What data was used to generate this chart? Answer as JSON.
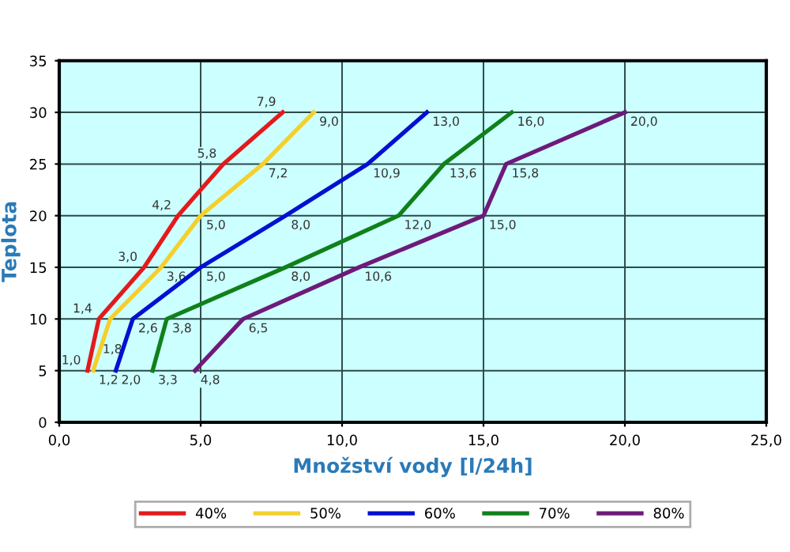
{
  "chart_data": {
    "type": "line",
    "xlabel": "Množství vody [l/24h]",
    "ylabel": "Teplota",
    "xlim": [
      0,
      25
    ],
    "xticks": [
      {
        "value": 0,
        "label": "0,0"
      },
      {
        "value": 5,
        "label": "5,0"
      },
      {
        "value": 10,
        "label": "10,0"
      },
      {
        "value": 15,
        "label": "15,0"
      },
      {
        "value": 20,
        "label": "20,0"
      },
      {
        "value": 25,
        "label": "25,0"
      }
    ],
    "ylim": [
      0,
      35
    ],
    "yticks": [
      0,
      5,
      10,
      15,
      20,
      25,
      30,
      35
    ],
    "grid": true,
    "legend": "bottom",
    "marker": "none",
    "line_style": "solid",
    "series": [
      {
        "name": "40%",
        "color": "#e31a1c",
        "x": [
          1.0,
          1.4,
          3.0,
          4.2,
          5.8,
          7.9
        ],
        "values": [
          5,
          10,
          15,
          20,
          25,
          30
        ]
      },
      {
        "name": "50%",
        "color": "#f5cf2c",
        "x": [
          1.2,
          1.8,
          3.6,
          5.0,
          7.2,
          9.0
        ],
        "values": [
          5,
          10,
          15,
          20,
          25,
          30
        ]
      },
      {
        "name": "60%",
        "color": "#0010d0",
        "x": [
          2.0,
          2.6,
          5.0,
          8.0,
          10.9,
          13.0
        ],
        "values": [
          5,
          10,
          15,
          20,
          25,
          30
        ]
      },
      {
        "name": "70%",
        "color": "#10801a",
        "x": [
          3.3,
          3.8,
          8.0,
          12.0,
          13.6,
          16.0
        ],
        "values": [
          5,
          10,
          15,
          20,
          25,
          30
        ]
      },
      {
        "name": "80%",
        "color": "#6e1a7a",
        "x": [
          4.8,
          6.5,
          10.6,
          15.0,
          15.8,
          20.0
        ],
        "values": [
          5,
          10,
          15,
          20,
          25,
          30
        ]
      }
    ],
    "annotations": [
      {
        "text": "1,0",
        "x": 1.0,
        "y": 5
      },
      {
        "text": "1,4",
        "x": 1.4,
        "y": 10
      },
      {
        "text": "3,0",
        "x": 3.0,
        "y": 15
      },
      {
        "text": "4,2",
        "x": 4.2,
        "y": 20
      },
      {
        "text": "5,8",
        "x": 5.8,
        "y": 25
      },
      {
        "text": "7,9",
        "x": 7.9,
        "y": 30
      },
      {
        "text": "1,2",
        "x": 1.2,
        "y": 5
      },
      {
        "text": "1,8",
        "x": 1.8,
        "y": 10
      },
      {
        "text": "3,6",
        "x": 3.6,
        "y": 15
      },
      {
        "text": "5,0",
        "x": 5.0,
        "y": 20
      },
      {
        "text": "7,2",
        "x": 7.2,
        "y": 25
      },
      {
        "text": "9,0",
        "x": 9.0,
        "y": 30
      },
      {
        "text": "2,0",
        "x": 2.0,
        "y": 5
      },
      {
        "text": "2,6",
        "x": 2.6,
        "y": 10
      },
      {
        "text": "5,0",
        "x": 5.0,
        "y": 15
      },
      {
        "text": "8,0",
        "x": 8.0,
        "y": 20
      },
      {
        "text": "10,9",
        "x": 10.9,
        "y": 25
      },
      {
        "text": "13,0",
        "x": 13.0,
        "y": 30
      },
      {
        "text": "3,3",
        "x": 3.3,
        "y": 5
      },
      {
        "text": "3,8",
        "x": 3.8,
        "y": 10
      },
      {
        "text": "8,0",
        "x": 8.0,
        "y": 15
      },
      {
        "text": "12,0",
        "x": 12.0,
        "y": 20
      },
      {
        "text": "13,6",
        "x": 13.6,
        "y": 25
      },
      {
        "text": "16,0",
        "x": 16.0,
        "y": 30
      },
      {
        "text": "4,8",
        "x": 4.8,
        "y": 5
      },
      {
        "text": "6,5",
        "x": 6.5,
        "y": 10
      },
      {
        "text": "10,6",
        "x": 10.6,
        "y": 15
      },
      {
        "text": "15,0",
        "x": 15.0,
        "y": 20
      },
      {
        "text": "15,8",
        "x": 15.8,
        "y": 25
      },
      {
        "text": "20,0",
        "x": 20.0,
        "y": 30
      }
    ]
  }
}
